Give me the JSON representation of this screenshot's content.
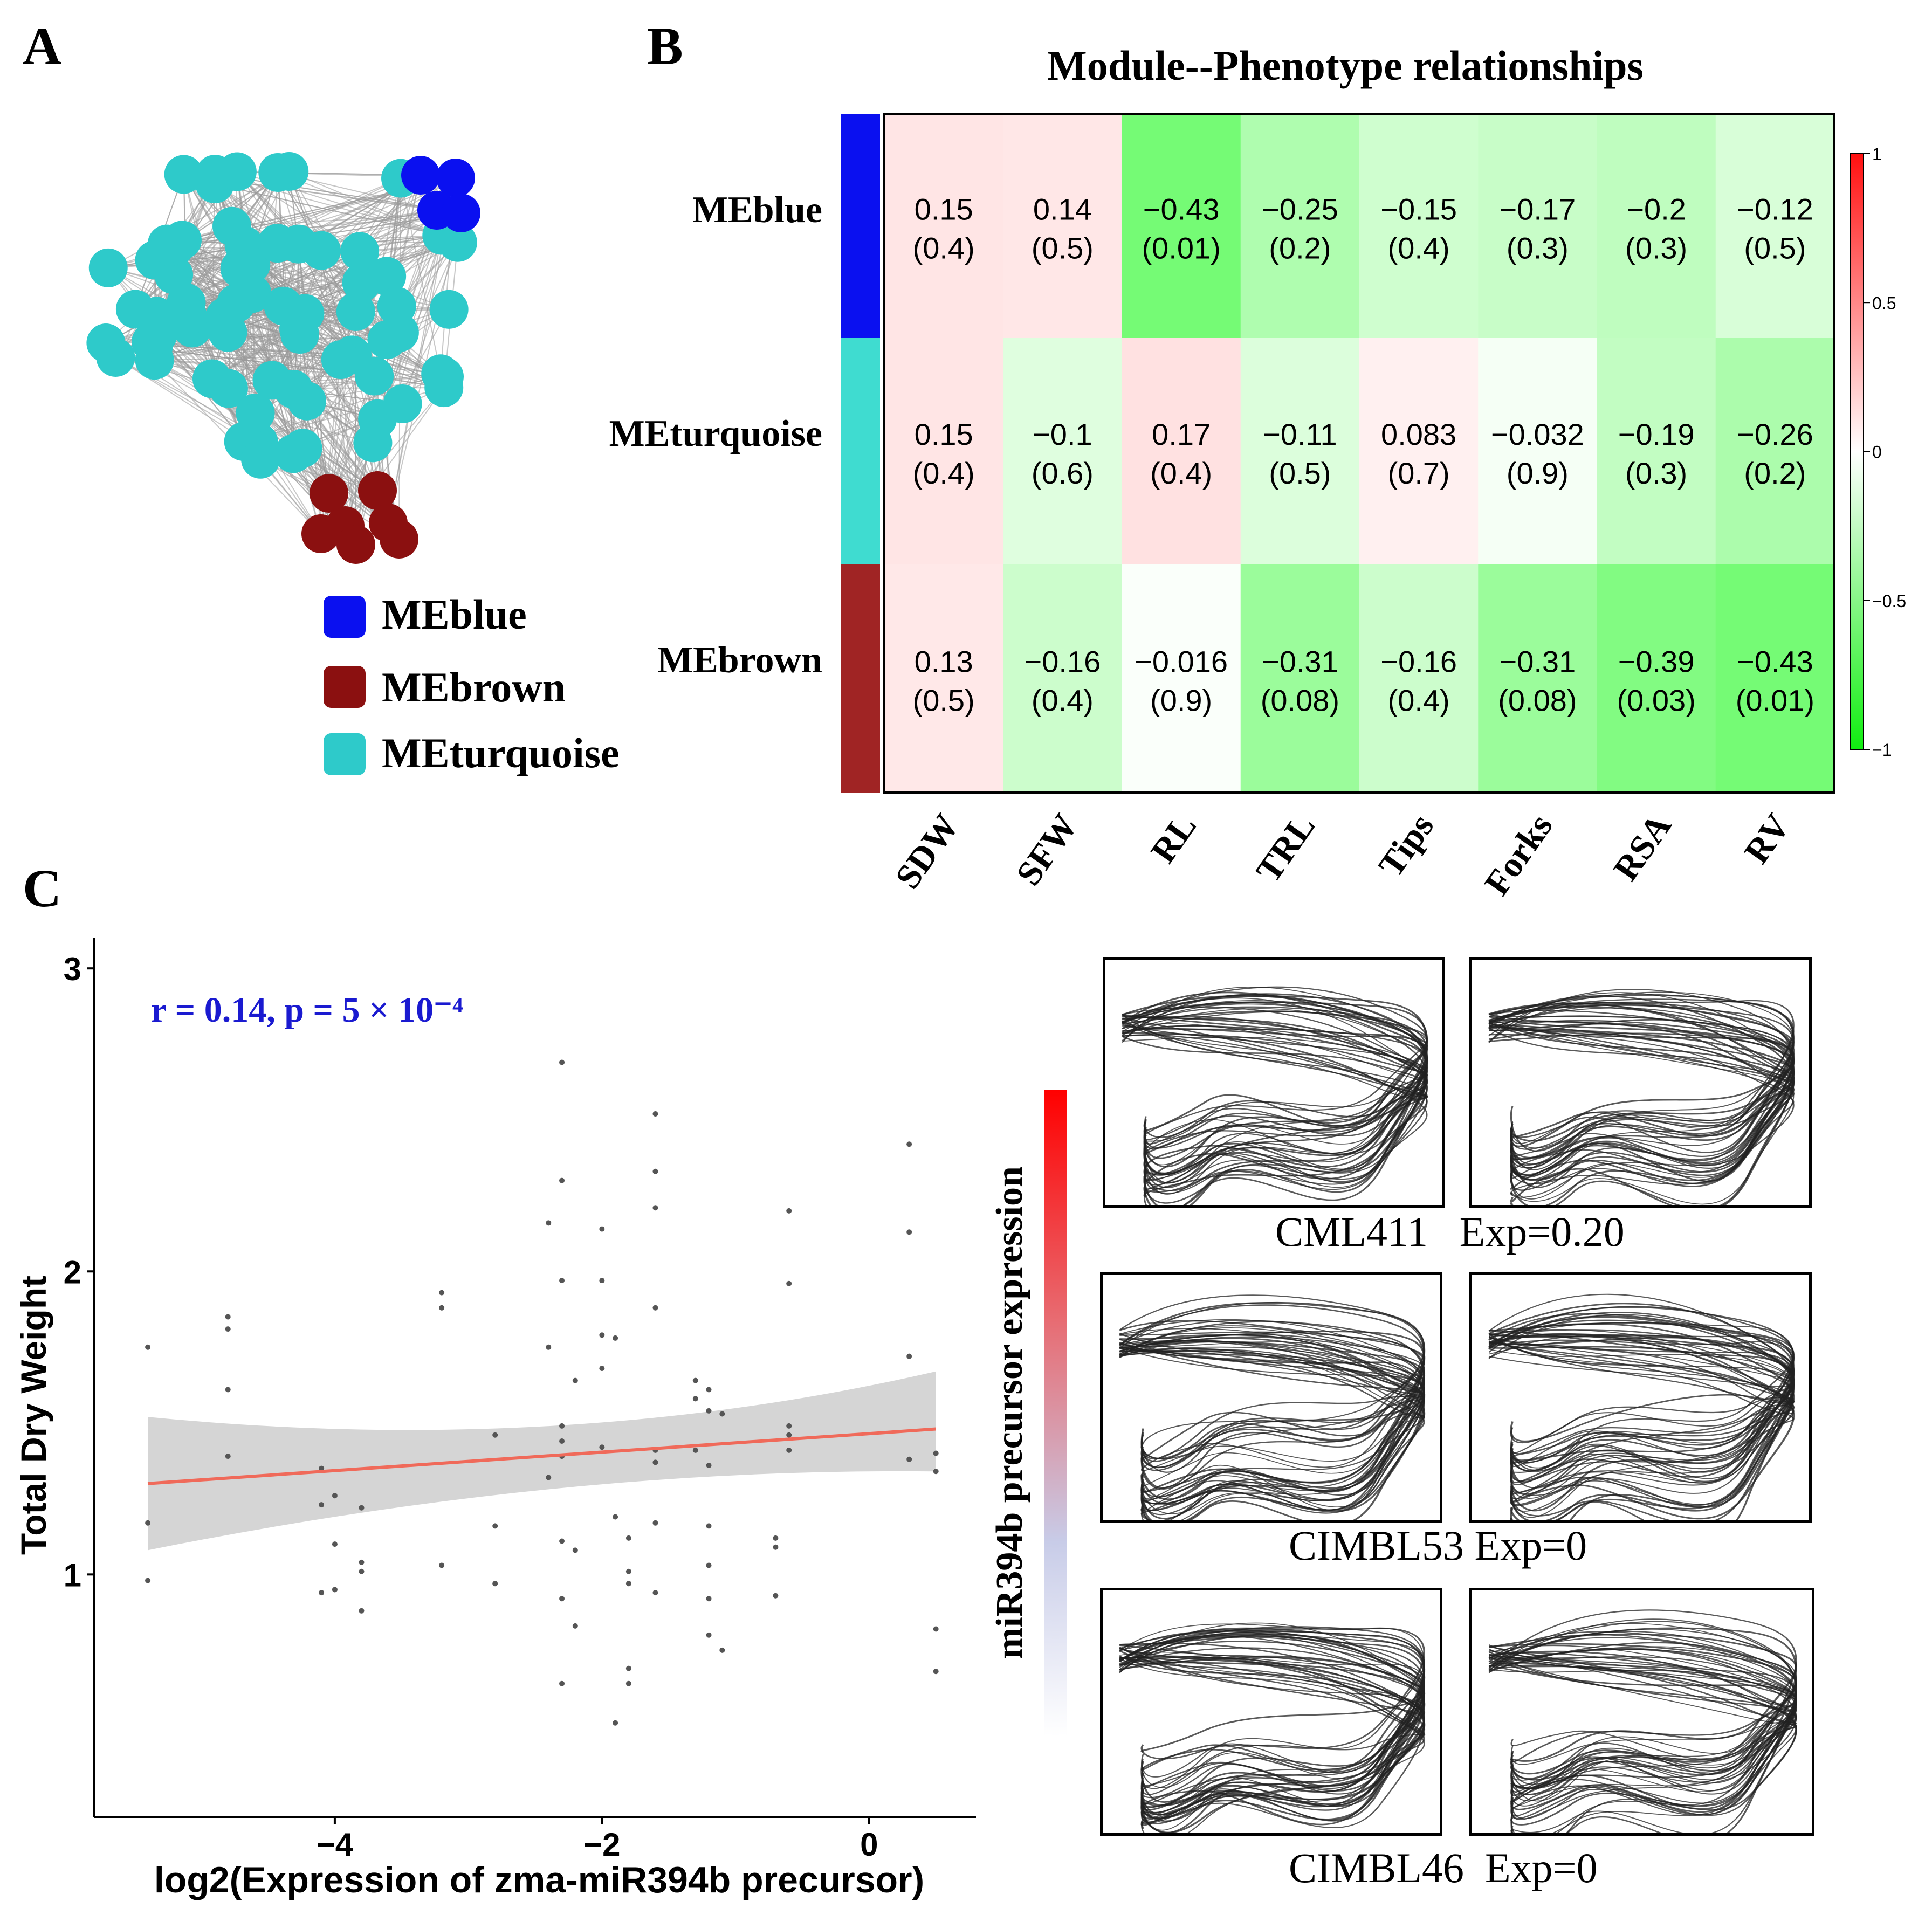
{
  "panels": {
    "a": "A",
    "b": "B",
    "c": "C"
  },
  "colors": {
    "blue": "#0a10f0",
    "brown": "#8b1010",
    "turquoise": "#2ecaca",
    "edge": "#9a9a9a",
    "fit_line": "#f06a5a",
    "ci_band": "#d0d0d0",
    "annot": "#1a1ad0"
  },
  "network": {
    "legend": [
      {
        "name": "MEblue",
        "color": "#0a10f0"
      },
      {
        "name": "MEbrown",
        "color": "#8b1010"
      },
      {
        "name": "MEturquoise",
        "color": "#2ecaca"
      }
    ]
  },
  "captions": [
    {
      "name": "CML411",
      "exp": "Exp=0.20",
      "text": "CML411   Exp=0.20"
    },
    {
      "name": "CIMBL53",
      "exp": "Exp=0",
      "text": "CIMBL53 Exp=0"
    },
    {
      "name": "CIMBL46",
      "exp": "Exp=0",
      "text": "CIMBL46  Exp=0"
    }
  ],
  "chart_data": [
    {
      "type": "heatmap",
      "title": "Module--Phenotype relationships",
      "rows": [
        "MEblue",
        "MEturquoise",
        "MEbrown"
      ],
      "row_colors": [
        "#0a10f0",
        "#3fdcd0",
        "#a02424"
      ],
      "columns": [
        "SDW",
        "SFW",
        "RL",
        "TRL",
        "Tips",
        "Forks",
        "RSA",
        "RV"
      ],
      "values": [
        [
          0.15,
          0.14,
          -0.43,
          -0.25,
          -0.15,
          -0.17,
          -0.2,
          -0.12
        ],
        [
          0.15,
          -0.1,
          0.17,
          -0.11,
          0.083,
          -0.032,
          -0.19,
          -0.26
        ],
        [
          0.13,
          -0.16,
          -0.016,
          -0.31,
          -0.16,
          -0.31,
          -0.39,
          -0.43
        ]
      ],
      "labels": [
        [
          "0.15",
          "0.14",
          "−0.43",
          "−0.25",
          "−0.15",
          "−0.17",
          "−0.2",
          "−0.12"
        ],
        [
          "0.15",
          "−0.1",
          "0.17",
          "−0.11",
          "0.083",
          "−0.032",
          "−0.19",
          "−0.26"
        ],
        [
          "0.13",
          "−0.16",
          "−0.016",
          "−0.31",
          "−0.16",
          "−0.31",
          "−0.39",
          "−0.43"
        ]
      ],
      "pvalues": [
        [
          "(0.4)",
          "(0.5)",
          "(0.01)",
          "(0.2)",
          "(0.4)",
          "(0.3)",
          "(0.3)",
          "(0.5)"
        ],
        [
          "(0.4)",
          "(0.6)",
          "(0.4)",
          "(0.5)",
          "(0.7)",
          "(0.9)",
          "(0.3)",
          "(0.2)"
        ],
        [
          "(0.5)",
          "(0.4)",
          "(0.9)",
          "(0.08)",
          "(0.4)",
          "(0.08)",
          "(0.03)",
          "(0.01)"
        ]
      ],
      "colorbar": {
        "range": [
          -1,
          1
        ],
        "ticks": [
          1,
          0.5,
          0,
          -0.5,
          -1
        ],
        "tick_labels": [
          "1",
          "0.5",
          "0",
          "−0.5",
          "−1"
        ]
      }
    },
    {
      "type": "scatter",
      "xlabel": "log2(Expression of zma-miR394b precursor)",
      "ylabel": "Total Dry Weight",
      "annotation": "r = 0.14, p = 5 × 10⁻⁴",
      "xlim": [
        -5.8,
        0.8
      ],
      "ylim": [
        0.2,
        3.1
      ],
      "x_ticks": [
        -4,
        -2,
        0
      ],
      "x_tick_labels": [
        "−4",
        "−2",
        "0"
      ],
      "y_ticks": [
        1,
        2,
        3
      ],
      "y_tick_labels": [
        "1",
        "2",
        "3"
      ],
      "fit": {
        "x": [
          -5.4,
          0.5
        ],
        "y": [
          1.3,
          1.48
        ],
        "ci_low": [
          1.08,
          1.34
        ],
        "ci_high": [
          1.52,
          1.67
        ],
        "ci_mid": {
          "x": -2.3,
          "low": 1.31,
          "high": 1.43
        }
      },
      "points": [
        [
          -5.4,
          1.75
        ],
        [
          -5.4,
          1.17
        ],
        [
          -5.4,
          0.98
        ],
        [
          -4.8,
          1.85
        ],
        [
          -4.8,
          1.81
        ],
        [
          -4.8,
          1.61
        ],
        [
          -4.8,
          1.39
        ],
        [
          -4.1,
          1.35
        ],
        [
          -4.1,
          1.23
        ],
        [
          -4.1,
          0.94
        ],
        [
          -4.0,
          1.26
        ],
        [
          -4.0,
          1.1
        ],
        [
          -4.0,
          0.95
        ],
        [
          -3.8,
          1.22
        ],
        [
          -3.8,
          1.04
        ],
        [
          -3.8,
          1.01
        ],
        [
          -3.8,
          0.88
        ],
        [
          -3.2,
          1.93
        ],
        [
          -3.2,
          1.88
        ],
        [
          -3.2,
          1.03
        ],
        [
          -2.8,
          1.46
        ],
        [
          -2.8,
          1.16
        ],
        [
          -2.8,
          0.97
        ],
        [
          -2.4,
          2.16
        ],
        [
          -2.4,
          1.75
        ],
        [
          -2.4,
          1.32
        ],
        [
          -2.3,
          2.69
        ],
        [
          -2.3,
          2.3
        ],
        [
          -2.3,
          1.97
        ],
        [
          -2.3,
          1.49
        ],
        [
          -2.3,
          1.44
        ],
        [
          -2.3,
          1.39
        ],
        [
          -2.3,
          1.11
        ],
        [
          -2.3,
          0.92
        ],
        [
          -2.3,
          0.64
        ],
        [
          -2.2,
          1.64
        ],
        [
          -2.2,
          1.08
        ],
        [
          -2.2,
          0.83
        ],
        [
          -2.0,
          2.14
        ],
        [
          -2.0,
          1.97
        ],
        [
          -2.0,
          1.79
        ],
        [
          -2.0,
          1.68
        ],
        [
          -2.0,
          1.42
        ],
        [
          -1.9,
          1.78
        ],
        [
          -1.9,
          0.51
        ],
        [
          -1.9,
          1.19
        ],
        [
          -1.8,
          1.12
        ],
        [
          -1.8,
          1.01
        ],
        [
          -1.8,
          0.97
        ],
        [
          -1.8,
          0.69
        ],
        [
          -1.8,
          0.64
        ],
        [
          -1.6,
          2.52
        ],
        [
          -1.6,
          2.33
        ],
        [
          -1.6,
          2.21
        ],
        [
          -1.6,
          1.88
        ],
        [
          -1.6,
          1.41
        ],
        [
          -1.6,
          1.37
        ],
        [
          -1.6,
          1.17
        ],
        [
          -1.6,
          0.94
        ],
        [
          -1.3,
          1.64
        ],
        [
          -1.3,
          1.58
        ],
        [
          -1.3,
          1.41
        ],
        [
          -1.2,
          1.61
        ],
        [
          -1.2,
          1.54
        ],
        [
          -1.2,
          1.36
        ],
        [
          -1.2,
          1.16
        ],
        [
          -1.2,
          1.03
        ],
        [
          -1.2,
          0.92
        ],
        [
          -1.2,
          0.8
        ],
        [
          -1.1,
          1.53
        ],
        [
          -1.1,
          0.75
        ],
        [
          -0.7,
          1.12
        ],
        [
          -0.7,
          1.09
        ],
        [
          -0.7,
          0.93
        ],
        [
          -0.6,
          2.2
        ],
        [
          -0.6,
          1.96
        ],
        [
          -0.6,
          1.49
        ],
        [
          -0.6,
          1.46
        ],
        [
          -0.6,
          1.41
        ],
        [
          0.3,
          2.42
        ],
        [
          0.3,
          2.13
        ],
        [
          0.3,
          1.72
        ],
        [
          0.3,
          1.38
        ],
        [
          0.5,
          1.4
        ],
        [
          0.5,
          1.34
        ],
        [
          0.5,
          0.82
        ],
        [
          0.5,
          0.68
        ]
      ]
    },
    {
      "type": "gradient-bar",
      "label": "miR394b precursor expression",
      "colors": [
        "#ff0000",
        "#e86a70",
        "#c8cce8",
        "#ffffff"
      ]
    }
  ]
}
